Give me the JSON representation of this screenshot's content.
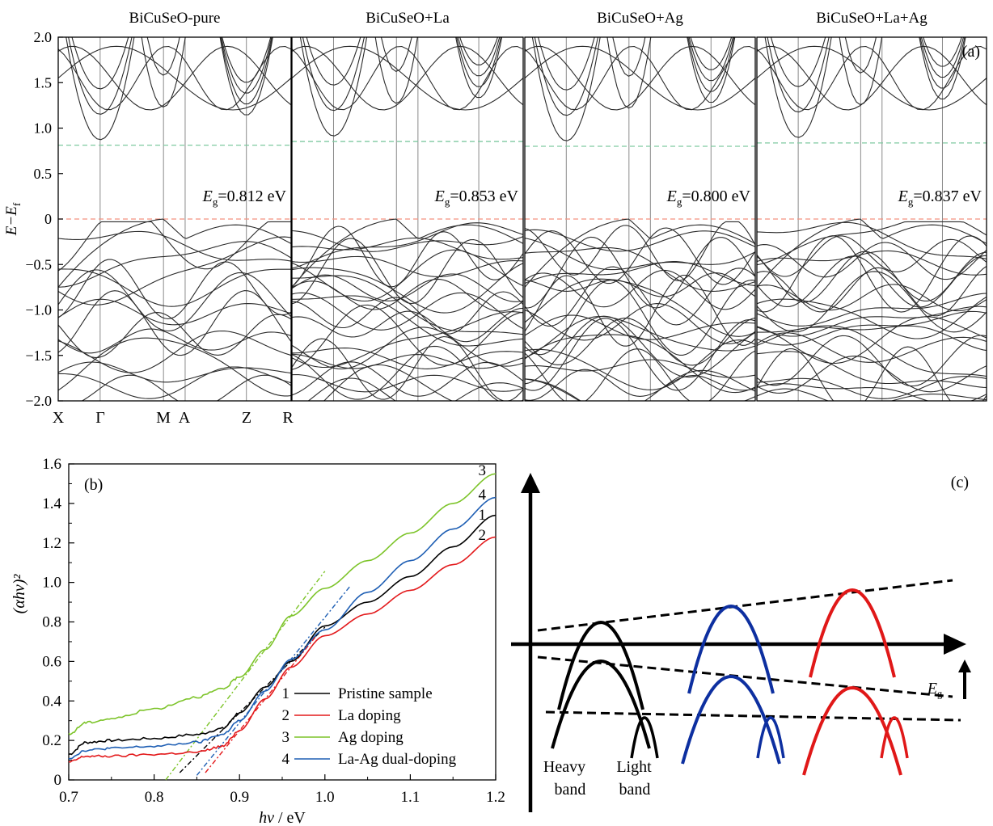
{
  "colors": {
    "pristine": "#000000",
    "la": "#e31a1c",
    "ag": "#7dc42a",
    "laag": "#1f5fb4",
    "cbm_ref": "#7fc9a0",
    "vbm_ref": "#f3917f",
    "c_black": "#000000",
    "c_blue": "#0d2fa0",
    "c_red": "#e01818"
  },
  "panel_a": {
    "label": "(a)",
    "ylabel": "E−E",
    "ylabel_sub": "f",
    "yticks": [
      "2.0",
      "1.5",
      "1.0",
      "0.5",
      "0",
      "−0.5",
      "−1.0",
      "−1.5",
      "−2.0"
    ],
    "kpoints": [
      "X",
      "Γ",
      "M",
      "A",
      "Z",
      "R"
    ],
    "gap_prefix": "E",
    "gap_sub": "g",
    "subplots": [
      {
        "title": "BiCuSeO-pure",
        "gap_text": "=0.812 eV"
      },
      {
        "title": "BiCuSeO+La",
        "gap_text": "=0.853 eV"
      },
      {
        "title": "BiCuSeO+Ag",
        "gap_text": "=0.800 eV"
      },
      {
        "title": "BiCuSeO+La+Ag",
        "gap_text": "=0.837 eV"
      }
    ]
  },
  "panel_b": {
    "label": "(b)",
    "xlabel_main": "hv",
    "xlabel_unit": " / eV",
    "ylabel": "(αhv)²",
    "xticks": [
      "0.7",
      "0.8",
      "0.9",
      "1.0",
      "1.1",
      "1.2"
    ],
    "yticks": [
      "0",
      "0.2",
      "0.4",
      "0.6",
      "0.8",
      "1.0",
      "1.2",
      "1.4",
      "1.6"
    ],
    "legend": [
      {
        "num": "1",
        "label": "Pristine sample"
      },
      {
        "num": "2",
        "label": "La doping"
      },
      {
        "num": "3",
        "label": "Ag doping"
      },
      {
        "num": "4",
        "label": "La-Ag dual-doping"
      }
    ],
    "end_labels": [
      "3",
      "4",
      "1",
      "2"
    ]
  },
  "panel_c": {
    "label": "(c)",
    "eg_main": "E",
    "eg_sub": "g",
    "heavy": [
      "Heavy",
      "band"
    ],
    "light": [
      "Light",
      "band"
    ]
  },
  "chart_data": [
    {
      "type": "line",
      "title": "",
      "panel": "(a) band structures",
      "ylabel": "E−Ef",
      "ylim": [
        -2.0,
        2.0
      ],
      "kpath": [
        "X",
        "Γ",
        "M",
        "A",
        "Z",
        "R"
      ],
      "series": [
        {
          "name": "BiCuSeO-pure",
          "band_gap_eV": 0.812,
          "cbm_eV": 0.812,
          "vbm_eV": 0
        },
        {
          "name": "BiCuSeO+La",
          "band_gap_eV": 0.853,
          "cbm_eV": 0.853,
          "vbm_eV": 0
        },
        {
          "name": "BiCuSeO+Ag",
          "band_gap_eV": 0.8,
          "cbm_eV": 0.8,
          "vbm_eV": 0
        },
        {
          "name": "BiCuSeO+La+Ag",
          "band_gap_eV": 0.837,
          "cbm_eV": 0.837,
          "vbm_eV": 0
        }
      ]
    },
    {
      "type": "line",
      "title": "",
      "panel": "(b)",
      "xlabel": "hv / eV",
      "ylabel": "(αhv)²",
      "xlim": [
        0.7,
        1.2
      ],
      "ylim": [
        0,
        1.6
      ],
      "grid": false,
      "legend": "bottom-right",
      "series": [
        {
          "name": "Pristine sample",
          "x": [
            0.7,
            0.72,
            0.75,
            0.8,
            0.85,
            0.88,
            0.9,
            0.93,
            0.96,
            1.0,
            1.05,
            1.1,
            1.15,
            1.2
          ],
          "y": [
            0.13,
            0.19,
            0.2,
            0.21,
            0.23,
            0.26,
            0.34,
            0.47,
            0.6,
            0.78,
            0.9,
            1.03,
            1.18,
            1.34
          ]
        },
        {
          "name": "La doping",
          "x": [
            0.7,
            0.72,
            0.75,
            0.8,
            0.85,
            0.88,
            0.9,
            0.93,
            0.96,
            1.0,
            1.05,
            1.1,
            1.15,
            1.2
          ],
          "y": [
            0.09,
            0.12,
            0.12,
            0.13,
            0.14,
            0.17,
            0.25,
            0.41,
            0.57,
            0.73,
            0.84,
            0.96,
            1.09,
            1.23
          ]
        },
        {
          "name": "Ag doping",
          "x": [
            0.7,
            0.72,
            0.75,
            0.8,
            0.85,
            0.88,
            0.9,
            0.93,
            0.96,
            1.0,
            1.05,
            1.1,
            1.15,
            1.2
          ],
          "y": [
            0.23,
            0.29,
            0.31,
            0.36,
            0.42,
            0.46,
            0.52,
            0.66,
            0.83,
            0.97,
            1.11,
            1.25,
            1.4,
            1.55
          ]
        },
        {
          "name": "La-Ag dual-doping",
          "x": [
            0.7,
            0.72,
            0.75,
            0.8,
            0.85,
            0.88,
            0.9,
            0.93,
            0.96,
            1.0,
            1.05,
            1.1,
            1.15,
            1.2
          ],
          "y": [
            0.11,
            0.15,
            0.16,
            0.17,
            0.19,
            0.23,
            0.3,
            0.45,
            0.61,
            0.76,
            0.95,
            1.11,
            1.27,
            1.43
          ]
        }
      ],
      "tangents": [
        {
          "series": "Pristine sample",
          "x0": 0.83,
          "x1": 1.0
        },
        {
          "series": "La doping",
          "x0": 0.86,
          "x1": 0.99
        },
        {
          "series": "Ag doping",
          "x0": 0.81,
          "x1": 1.0
        },
        {
          "series": "La-Ag dual-doping",
          "x0": 0.85,
          "x1": 1.03
        }
      ]
    },
    {
      "type": "line",
      "title": "",
      "panel": "(c) schematic band diagram",
      "xlabel": "Eg",
      "series": [
        {
          "name": "pristine",
          "color": "black"
        },
        {
          "name": "La doping",
          "color": "blue"
        },
        {
          "name": "Ag doping",
          "color": "red"
        }
      ]
    }
  ]
}
